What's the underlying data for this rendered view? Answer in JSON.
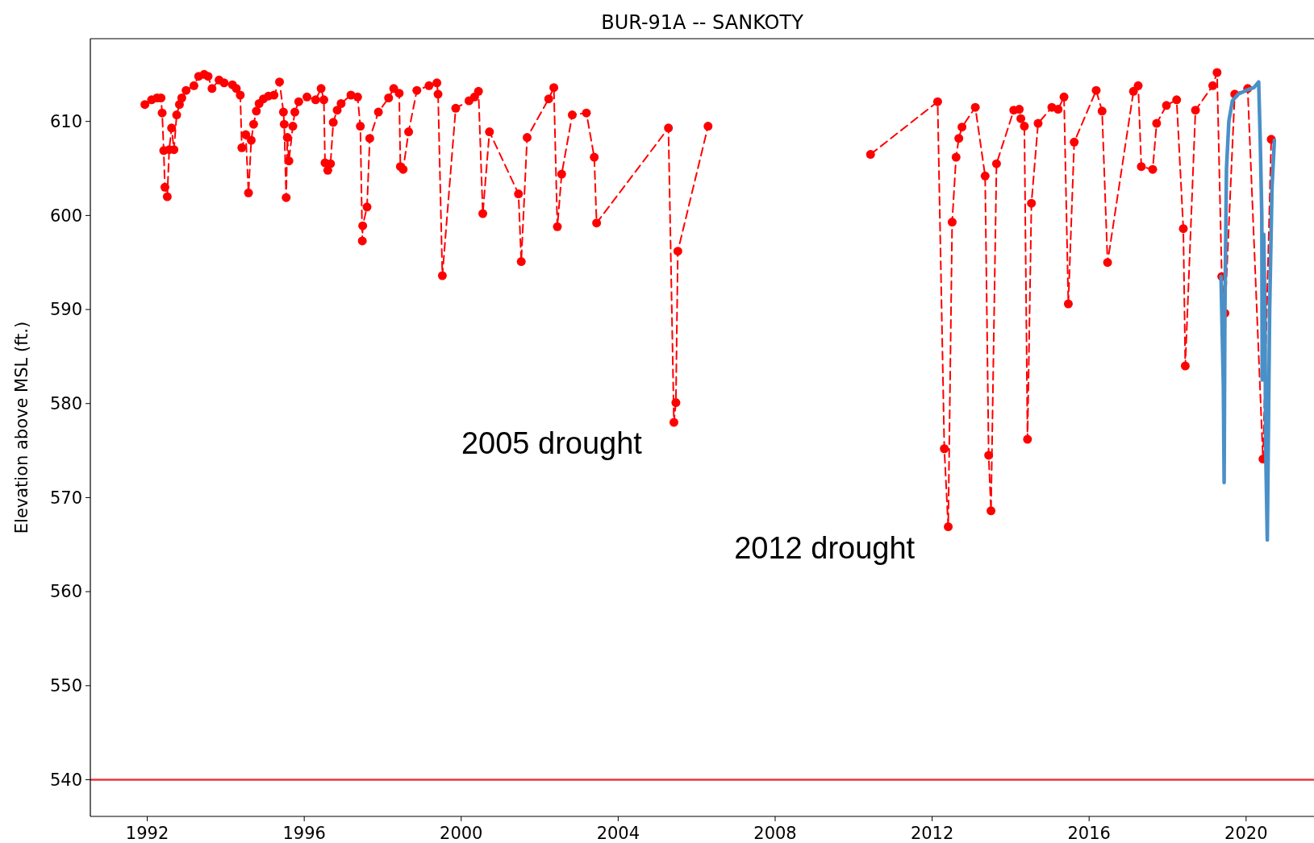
{
  "chart_data": {
    "type": "line",
    "title": "BUR-91A -- SANKOTY",
    "ylabel": "Elevation above MSL (ft.)",
    "xlim": [
      1990.55,
      2021.73
    ],
    "ylim": [
      536.1,
      618.8
    ],
    "xticks": [
      1992,
      1996,
      2000,
      2004,
      2008,
      2012,
      2016,
      2020
    ],
    "yticks": [
      540,
      550,
      560,
      570,
      580,
      590,
      600,
      610
    ],
    "grid": false,
    "ref_lines": [
      {
        "axis": "y",
        "value": 540,
        "color": "#e8383d",
        "line_style": "solid"
      }
    ],
    "annotations": [
      "2005 drought",
      "2012 drought"
    ],
    "series": [
      {
        "color": "#ff0000",
        "marker": "circle",
        "line_style": "dashed",
        "x": [
          1991.94,
          1992.11,
          1992.25,
          1992.35,
          1992.38,
          1992.42,
          1992.45,
          1992.51,
          1992.56,
          1992.62,
          1992.68,
          1992.75,
          1992.82,
          1992.88,
          1992.99,
          1993.19,
          1993.31,
          1993.45,
          1993.55,
          1993.65,
          1993.83,
          1993.96,
          1994.17,
          1994.27,
          1994.37,
          1994.41,
          1994.51,
          1994.58,
          1994.65,
          1994.71,
          1994.78,
          1994.85,
          1994.96,
          1995.09,
          1995.23,
          1995.37,
          1995.47,
          1995.49,
          1995.54,
          1995.57,
          1995.61,
          1995.71,
          1995.76,
          1995.86,
          1996.07,
          1996.29,
          1996.43,
          1996.5,
          1996.53,
          1996.6,
          1996.67,
          1996.74,
          1996.84,
          1996.94,
          1997.19,
          1997.36,
          1997.43,
          1997.48,
          1997.49,
          1997.6,
          1997.67,
          1997.89,
          1998.15,
          1998.28,
          1998.42,
          1998.45,
          1998.52,
          1998.66,
          1998.87,
          1999.18,
          1999.38,
          1999.41,
          1999.52,
          1999.86,
          2000.2,
          2000.34,
          2000.44,
          2000.55,
          2000.72,
          2001.46,
          2001.53,
          2001.68,
          2002.23,
          2002.36,
          2002.45,
          2002.56,
          2002.83,
          2003.19,
          2003.39,
          2003.45,
          2005.28,
          2005.42,
          2005.47,
          2005.52,
          2006.29,
          2008.4,
          2010.43,
          2012.14,
          2012.31,
          2012.41,
          2012.51,
          2012.61,
          2012.68,
          2012.76,
          2013.1,
          2013.35,
          2013.44,
          2013.5,
          2013.64,
          2014.08,
          2014.22,
          2014.26,
          2014.35,
          2014.43,
          2014.53,
          2014.7,
          2015.05,
          2015.21,
          2015.36,
          2015.47,
          2015.62,
          2016.18,
          2016.33,
          2016.47,
          2017.13,
          2017.25,
          2017.33,
          2017.62,
          2017.72,
          2017.97,
          2018.23,
          2018.4,
          2018.45,
          2018.71,
          2019.15,
          2019.26,
          2019.38,
          2019.46,
          2019.71,
          2020.04,
          2020.43,
          2020.64
        ],
        "values": [
          611.8,
          612.3,
          612.5,
          612.5,
          610.9,
          606.9,
          603.0,
          602.0,
          607.0,
          609.3,
          607.0,
          610.7,
          611.8,
          612.5,
          613.3,
          613.8,
          614.8,
          615.0,
          614.8,
          613.5,
          614.4,
          614.1,
          613.9,
          613.5,
          612.8,
          607.2,
          608.6,
          602.4,
          608.0,
          609.7,
          611.1,
          611.9,
          612.4,
          612.7,
          612.8,
          614.2,
          611.0,
          609.7,
          601.9,
          608.3,
          605.8,
          609.5,
          611.0,
          612.1,
          612.6,
          612.3,
          613.5,
          612.3,
          605.6,
          604.8,
          605.5,
          609.9,
          611.2,
          611.9,
          612.8,
          612.6,
          609.5,
          597.3,
          598.9,
          600.9,
          608.2,
          611.0,
          612.5,
          613.5,
          613.0,
          605.2,
          604.9,
          608.9,
          613.3,
          613.8,
          614.1,
          612.9,
          593.6,
          611.4,
          612.2,
          612.6,
          613.2,
          600.2,
          608.9,
          602.3,
          595.1,
          608.3,
          612.4,
          613.6,
          598.8,
          604.4,
          610.7,
          610.9,
          606.2,
          599.2,
          609.3,
          578.0,
          580.1,
          596.2,
          609.5,
          null,
          606.5,
          612.1,
          575.2,
          566.9,
          599.3,
          606.2,
          608.2,
          609.4,
          611.5,
          604.2,
          574.5,
          568.6,
          605.5,
          611.2,
          611.3,
          610.3,
          609.5,
          576.2,
          601.3,
          609.8,
          611.5,
          611.3,
          612.6,
          590.6,
          607.8,
          613.3,
          611.1,
          595.0,
          613.2,
          613.8,
          605.2,
          604.9,
          609.8,
          611.7,
          612.3,
          598.6,
          584.0,
          611.2,
          613.8,
          615.2,
          593.5,
          589.6,
          612.9,
          613.5,
          574.1,
          608.1
        ]
      },
      {
        "color": "#4a90c8",
        "marker": "none",
        "line_style": "solid",
        "x": [
          2019.36,
          2019.42,
          2019.44,
          2019.46,
          2019.5,
          2019.56,
          2019.65,
          2019.8,
          2020.0,
          2020.2,
          2020.32,
          2020.36,
          2020.4,
          2020.41,
          2020.45,
          2020.48,
          2020.5,
          2020.54,
          2020.6,
          2020.66,
          2020.72
        ],
        "values": [
          593.5,
          582.0,
          571.6,
          590.0,
          605.0,
          610.0,
          612.2,
          612.9,
          613.3,
          613.6,
          614.2,
          608.0,
          600.0,
          582.5,
          598.0,
          590.0,
          575.0,
          565.5,
          590.0,
          603.0,
          608.0
        ]
      }
    ]
  }
}
